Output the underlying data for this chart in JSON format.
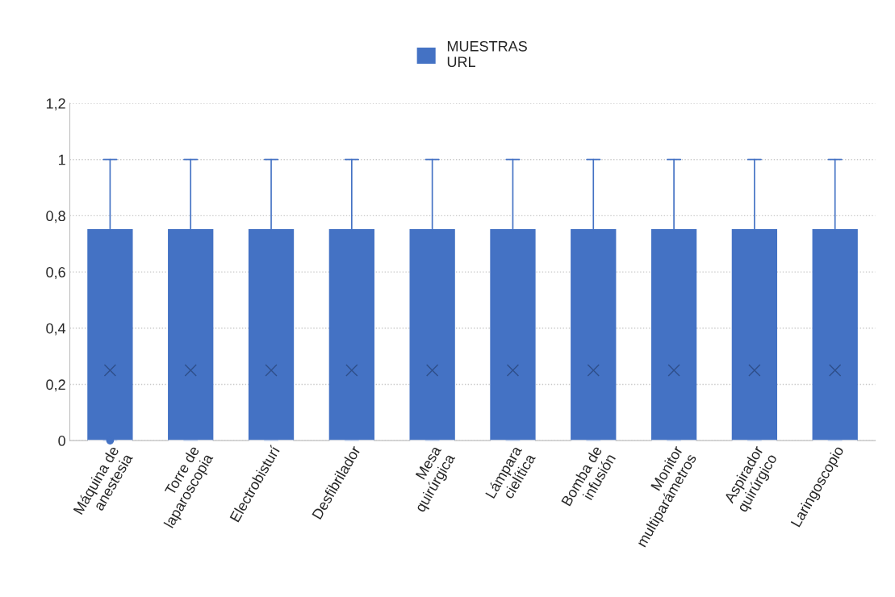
{
  "chart_data": {
    "type": "box",
    "categories": [
      "Máquina de\nanestesia",
      "Torre de\nlaparoscopia",
      "Electrobisturí",
      "Desfibrilador",
      "Mesa\nquirúrgica",
      "Lámpara\ncielítica",
      "Bomba de\ninfusión",
      "Monitor\nmultiparámetros",
      "Aspirador\nquirúrgico",
      "Laringoscopio"
    ],
    "series": [
      {
        "name": "MUESTRAS\nURL",
        "color": "#4472c4",
        "boxes": [
          {
            "low": 0,
            "q1": 0,
            "median": 0,
            "q3": 0.75,
            "high": 1,
            "mean": 0.25,
            "outliers": [
              0
            ]
          },
          {
            "low": 0,
            "q1": 0,
            "median": 0,
            "q3": 0.75,
            "high": 1,
            "mean": 0.25
          },
          {
            "low": 0,
            "q1": 0,
            "median": 0,
            "q3": 0.75,
            "high": 1,
            "mean": 0.25
          },
          {
            "low": 0,
            "q1": 0,
            "median": 0,
            "q3": 0.75,
            "high": 1,
            "mean": 0.25
          },
          {
            "low": 0,
            "q1": 0,
            "median": 0,
            "q3": 0.75,
            "high": 1,
            "mean": 0.25
          },
          {
            "low": 0,
            "q1": 0,
            "median": 0,
            "q3": 0.75,
            "high": 1,
            "mean": 0.25
          },
          {
            "low": 0,
            "q1": 0,
            "median": 0,
            "q3": 0.75,
            "high": 1,
            "mean": 0.25
          },
          {
            "low": 0,
            "q1": 0,
            "median": 0,
            "q3": 0.75,
            "high": 1,
            "mean": 0.25
          },
          {
            "low": 0,
            "q1": 0,
            "median": 0,
            "q3": 0.75,
            "high": 1,
            "mean": 0.25
          },
          {
            "low": 0,
            "q1": 0,
            "median": 0,
            "q3": 0.75,
            "high": 1,
            "mean": 0.25
          }
        ]
      }
    ],
    "ylim": [
      0,
      1.2
    ],
    "yticks": [
      {
        "value": 0,
        "label": "0"
      },
      {
        "value": 0.2,
        "label": "0,2"
      },
      {
        "value": 0.4,
        "label": "0,4"
      },
      {
        "value": 0.6,
        "label": "0,6"
      },
      {
        "value": 0.8,
        "label": "0,8"
      },
      {
        "value": 1,
        "label": "1"
      },
      {
        "value": 1.2,
        "label": "1,2"
      }
    ],
    "grid": "y",
    "legend": "top"
  }
}
